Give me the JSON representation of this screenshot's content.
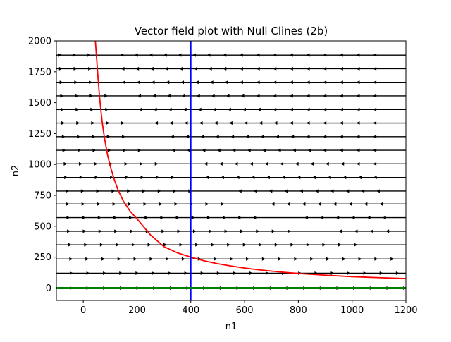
{
  "chart_data": {
    "type": "quiver",
    "title": "Vector field plot with Null Clines (2b)",
    "xlabel": "n1",
    "ylabel": "n2",
    "xlim": [
      -100,
      1200
    ],
    "ylim": [
      -100,
      2000
    ],
    "xticks": [
      0,
      200,
      400,
      600,
      800,
      1000,
      1200
    ],
    "yticks": [
      0,
      250,
      500,
      750,
      1000,
      1250,
      1500,
      1750,
      2000
    ],
    "grid": false,
    "legend": "none",
    "vector_field": {
      "x_start": -100,
      "x_step": 62,
      "x_count": 21,
      "rows": [
        {
          "y": 0,
          "dx_at_0": 28,
          "slope": -0.012
        },
        {
          "y": 120,
          "dx_at_0": 24,
          "slope": -0.045
        },
        {
          "y": 235,
          "dx_at_0": 22,
          "slope": -0.07
        },
        {
          "y": 350,
          "dx_at_0": 20,
          "slope": -0.09
        },
        {
          "y": 460,
          "dx_at_0": 18,
          "slope": -0.105
        },
        {
          "y": 570,
          "dx_at_0": 17,
          "slope": -0.12
        },
        {
          "y": 680,
          "dx_at_0": 16,
          "slope": -0.135
        },
        {
          "y": 785,
          "dx_at_0": 15,
          "slope": -0.15
        },
        {
          "y": 895,
          "dx_at_0": 13,
          "slope": -0.16
        },
        {
          "y": 1005,
          "dx_at_0": 12,
          "slope": -0.17
        },
        {
          "y": 1115,
          "dx_at_0": 10,
          "slope": -0.18
        },
        {
          "y": 1225,
          "dx_at_0": 9,
          "slope": -0.19
        },
        {
          "y": 1335,
          "dx_at_0": 8,
          "slope": -0.2
        },
        {
          "y": 1445,
          "dx_at_0": 7,
          "slope": -0.21
        },
        {
          "y": 1555,
          "dx_at_0": 6,
          "slope": -0.22
        },
        {
          "y": 1665,
          "dx_at_0": 5,
          "slope": -0.23
        },
        {
          "y": 1775,
          "dx_at_0": 4,
          "slope": -0.24
        },
        {
          "y": 1885,
          "dx_at_0": 3,
          "slope": -0.25
        }
      ]
    },
    "series": [
      {
        "role": "n1-nullcline",
        "color": "#ff0000",
        "x": [
          45,
          55,
          60,
          65,
          70,
          75,
          80,
          90,
          100,
          115,
          130,
          150,
          175,
          200,
          250,
          300,
          350,
          400,
          450,
          500,
          550,
          600,
          650,
          700,
          750,
          800,
          850,
          900,
          950,
          1000,
          1050,
          1100,
          1150,
          1200
        ],
        "y": [
          2000,
          1700,
          1560,
          1450,
          1350,
          1270,
          1200,
          1080,
          990,
          880,
          790,
          700,
          620,
          560,
          430,
          335,
          285,
          250,
          220,
          197,
          178,
          162,
          148,
          137,
          127,
          118,
          111,
          104,
          98,
          92,
          88,
          84,
          80,
          77
        ]
      },
      {
        "role": "vertical-nullcline",
        "color": "#0000ff",
        "x": [
          400,
          400
        ],
        "y": [
          -100,
          2000
        ]
      },
      {
        "role": "horizontal-nullcline",
        "color": "#008000",
        "x": [
          -100,
          1200
        ],
        "y": [
          0,
          0
        ]
      }
    ]
  }
}
